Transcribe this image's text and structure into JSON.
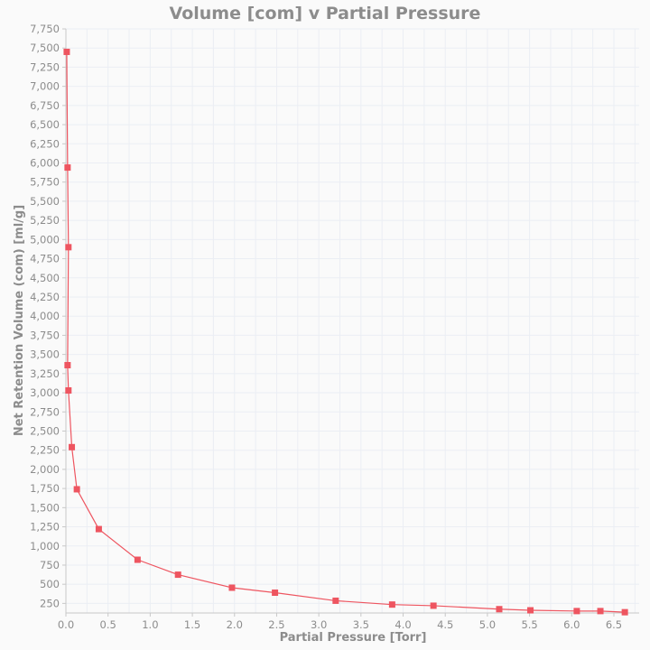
{
  "chart_data": {
    "type": "line",
    "title": "Volume [com] v Partial Pressure",
    "xlabel": "Partial Pressure [Torr]",
    "ylabel": "Net Retention Volume (com) [ml/g]",
    "xlim": [
      0,
      6.8
    ],
    "ylim": [
      125,
      7750
    ],
    "x_ticks": [
      "0.0",
      "0.5",
      "1.0",
      "1.5",
      "2.0",
      "2.5",
      "3.0",
      "3.5",
      "4.0",
      "4.5",
      "5.0",
      "5.5",
      "6.0",
      "6.5"
    ],
    "y_ticks": [
      "250",
      "500",
      "750",
      "1,000",
      "1,250",
      "1,500",
      "1,750",
      "2,000",
      "2,250",
      "2,500",
      "2,750",
      "3,000",
      "3,250",
      "3,500",
      "3,750",
      "4,000",
      "4,250",
      "4,500",
      "4,750",
      "5,000",
      "5,250",
      "5,500",
      "5,750",
      "6,000",
      "6,250",
      "6,500",
      "6,750",
      "7,000",
      "7,250",
      "7,500",
      "7,750"
    ],
    "grid": true,
    "series": [
      {
        "color": "#ee5560",
        "marker": "square",
        "points": [
          [
            0.01,
            7450
          ],
          [
            0.02,
            5940
          ],
          [
            0.03,
            4900
          ],
          [
            0.02,
            3360
          ],
          [
            0.03,
            3030
          ],
          [
            0.07,
            2290
          ],
          [
            0.13,
            1740
          ],
          [
            0.39,
            1220
          ],
          [
            0.85,
            820
          ],
          [
            1.33,
            625
          ],
          [
            1.97,
            455
          ],
          [
            2.48,
            390
          ],
          [
            3.2,
            285
          ],
          [
            3.87,
            235
          ],
          [
            4.36,
            220
          ],
          [
            5.14,
            175
          ],
          [
            5.51,
            160
          ],
          [
            6.06,
            150
          ],
          [
            6.34,
            150
          ],
          [
            6.63,
            135
          ]
        ]
      }
    ]
  }
}
